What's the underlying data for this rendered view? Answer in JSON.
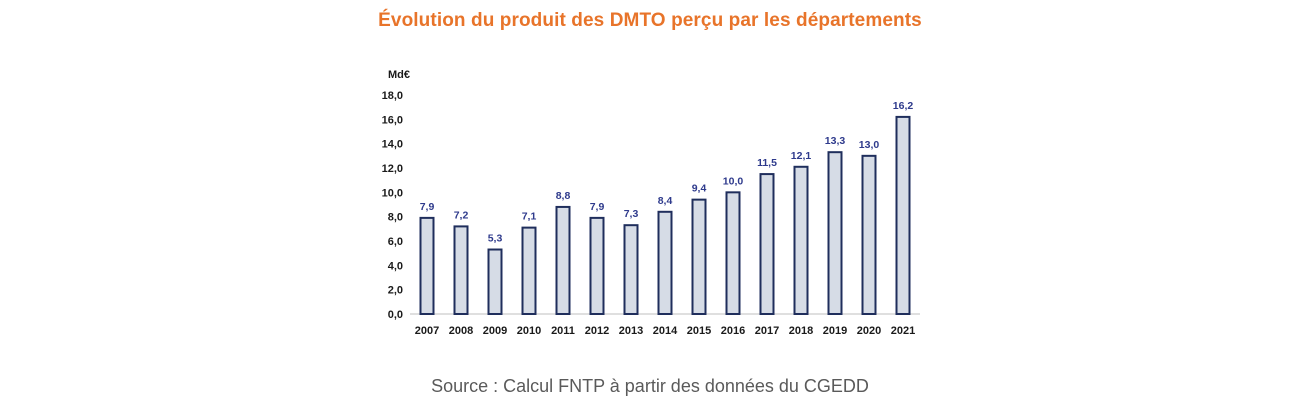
{
  "page": {
    "title": "Évolution du produit des DMTO perçu par les départements",
    "source": "Source : Calcul FNTP à partir des données du CGEDD"
  },
  "colors": {
    "title": "#e8742a",
    "bar_fill": "#d6dce6",
    "bar_stroke": "#1f2e5c",
    "data_label": "#2e3a8c",
    "axis_text": "#1a1a1a",
    "axis_line": "#bfbfbf"
  },
  "chart_data": {
    "type": "bar",
    "title": "Évolution du produit des DMTO perçu par les départements",
    "ylabel": "Md€",
    "xlabel": "",
    "categories": [
      "2007",
      "2008",
      "2009",
      "2010",
      "2011",
      "2012",
      "2013",
      "2014",
      "2015",
      "2016",
      "2017",
      "2018",
      "2019",
      "2020",
      "2021"
    ],
    "values": [
      7.9,
      7.2,
      5.3,
      7.1,
      8.8,
      7.9,
      7.3,
      8.4,
      9.4,
      10.0,
      11.5,
      12.1,
      13.3,
      13.0,
      16.2
    ],
    "value_labels": [
      "7,9",
      "7,2",
      "5,3",
      "7,1",
      "8,8",
      "7,9",
      "7,3",
      "8,4",
      "9,4",
      "10,0",
      "11,5",
      "12,1",
      "13,3",
      "13,0",
      "16,2"
    ],
    "yticks": [
      0,
      2,
      4,
      6,
      8,
      10,
      12,
      14,
      16,
      18
    ],
    "ytick_labels": [
      "0,0",
      "2,0",
      "4,0",
      "6,0",
      "8,0",
      "10,0",
      "12,0",
      "14,0",
      "16,0",
      "18,0"
    ],
    "ylim": [
      0,
      18
    ],
    "grid": false,
    "legend": "none"
  }
}
